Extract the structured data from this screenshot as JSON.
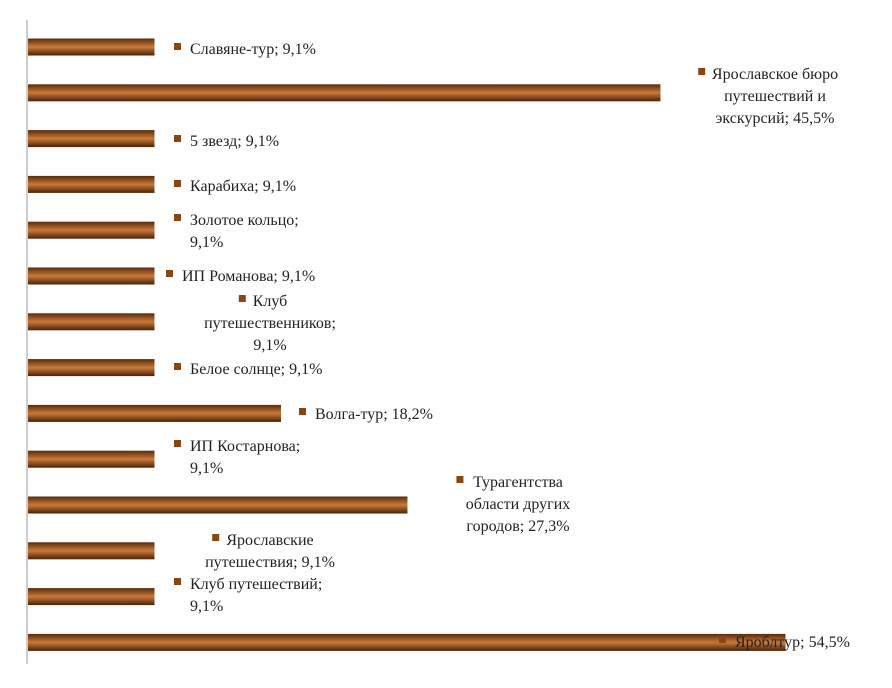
{
  "chart_data": {
    "type": "bar",
    "orientation": "horizontal",
    "title": "",
    "xlabel": "",
    "ylabel": "",
    "xlim": [
      0,
      60
    ],
    "grid": false,
    "bar_color": "#8B4513",
    "bar_highlight": "#C97A3A",
    "label_marker_color": "#8B4513",
    "series": [
      {
        "values": [
          9.1,
          45.5,
          9.1,
          9.1,
          9.1,
          9.1,
          9.1,
          9.1,
          18.2,
          9.1,
          27.3,
          9.1,
          9.1,
          54.5
        ]
      }
    ],
    "categories": [
      "Славяне-тур",
      "Ярославское бюро путешествий и экскурсий",
      "5 звезд",
      "Карабиха",
      "Золотое кольцо",
      "ИП Романова",
      "Клуб путешественников",
      "Белое солнце",
      "Волга-тур",
      "ИП Костарнова",
      "Турагентства области других городов",
      "Ярославские путешествия",
      "Клуб путешествий",
      "Яроблтур"
    ],
    "data_labels": [
      [
        "Славяне-тур; 9,1%"
      ],
      [
        "Ярославское бюро",
        "путешествий и",
        "экскурсий; 45,5%"
      ],
      [
        "5 звезд; 9,1%"
      ],
      [
        "Карабиха; 9,1%"
      ],
      [
        "Золотое кольцо;",
        "9,1%"
      ],
      [
        "ИП Романова; 9,1%"
      ],
      [
        "Клуб",
        "путешественников;",
        "9,1%"
      ],
      [
        "Белое солнце; 9,1%"
      ],
      [
        "Волга-тур; 18,2%"
      ],
      [
        "ИП Костарнова;",
        "9,1%"
      ],
      [
        "Турагентства",
        "области других",
        "городов; 27,3%"
      ],
      [
        "Ярославские",
        "путешествия; 9,1%"
      ],
      [
        "Клуб путешествий;",
        "9,1%"
      ],
      [
        "Яроблтур; 54,5%"
      ]
    ]
  }
}
